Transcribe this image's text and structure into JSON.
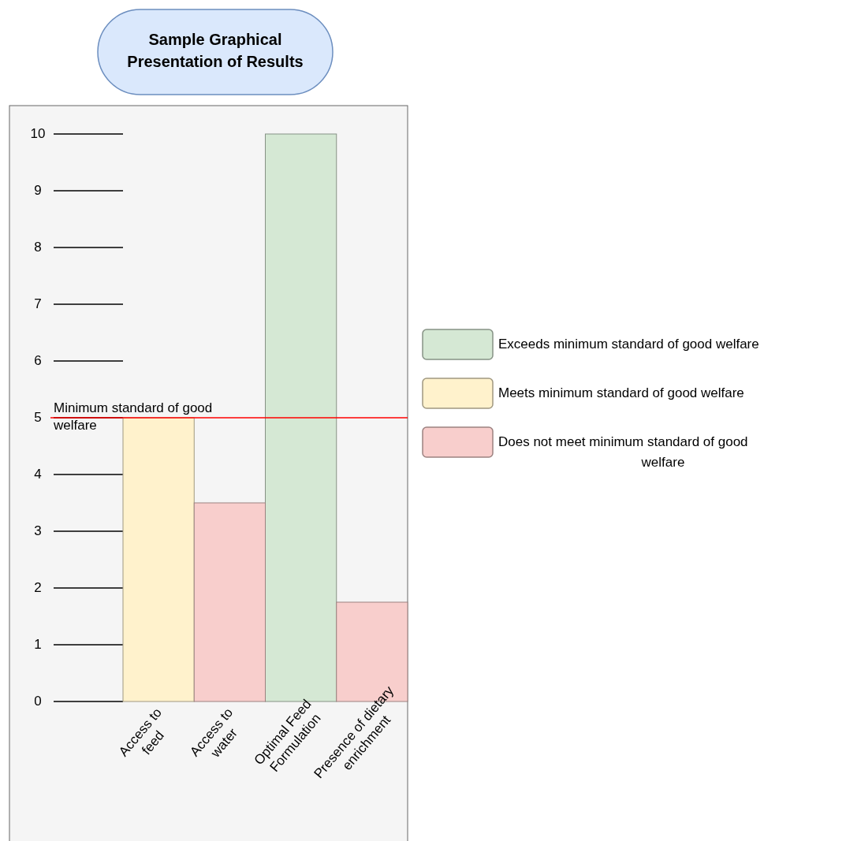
{
  "chart_data": {
    "type": "bar",
    "title": "Sample Graphical Presentation of Results",
    "categories": [
      "Access to feed",
      "Access to water",
      "Optimal Feed Formulation",
      "Presence of dietary enrichment"
    ],
    "series": [
      {
        "name": "Exceeds minimum standard of good welfare",
        "color": "#d5e8d4",
        "values": [
          null,
          null,
          10,
          null
        ]
      },
      {
        "name": "Meets minimum standard of good welfare",
        "color": "#fff2cc",
        "values": [
          5,
          null,
          null,
          null
        ]
      },
      {
        "name": "Does not meet minimum standard of good welfare",
        "color": "#f8cecc",
        "values": [
          null,
          3.5,
          null,
          1.75
        ]
      }
    ],
    "ylim": [
      0,
      10
    ],
    "yticks": [
      0,
      1,
      2,
      3,
      4,
      5,
      6,
      7,
      8,
      9,
      10
    ],
    "ref_lines": [
      {
        "axis": "y",
        "value": 5,
        "label": "Minimum standard of good welfare",
        "color": "#ff0000"
      }
    ],
    "legend": "right"
  }
}
